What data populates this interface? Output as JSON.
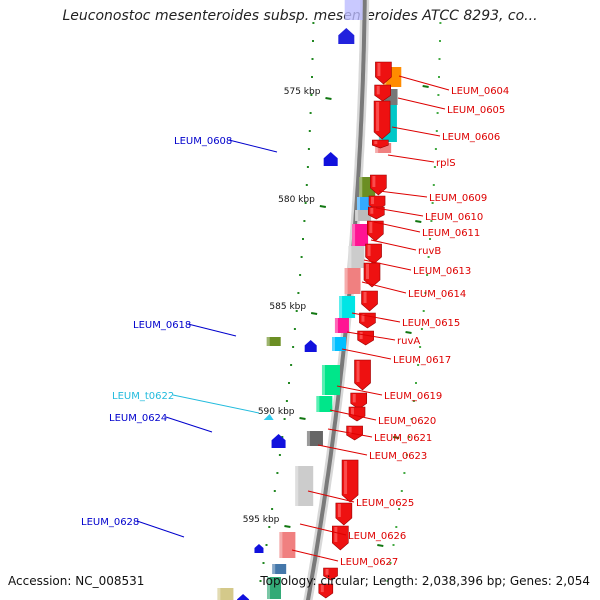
{
  "title": "Leuconostoc mesenteroides subsp. mesenteroides ATCC 8293, co...",
  "accession": "Accession: NC_008531",
  "summary": "Topology: circular; Length: 2,038,396 bp; Genes: 2,054",
  "ruler": [
    {
      "label": "575 kbp"
    },
    {
      "label": "580 kbp"
    },
    {
      "label": "585 kbp"
    },
    {
      "label": "590 kbp"
    },
    {
      "label": "595 kbp"
    }
  ],
  "features": [
    {
      "label": "LEUM_0604",
      "color": "#dd0000",
      "strand": "minus"
    },
    {
      "label": "LEUM_0605",
      "color": "#dd0000",
      "strand": "minus"
    },
    {
      "label": "LEUM_0606",
      "color": "#dd0000",
      "strand": "minus"
    },
    {
      "label": "rplS",
      "color": "#dd0000",
      "strand": "minus"
    },
    {
      "label": "LEUM_0609",
      "color": "#dd0000",
      "strand": "minus"
    },
    {
      "label": "LEUM_0610",
      "color": "#dd0000",
      "strand": "minus"
    },
    {
      "label": "LEUM_0611",
      "color": "#dd0000",
      "strand": "minus"
    },
    {
      "label": "ruvB",
      "color": "#dd0000",
      "strand": "minus"
    },
    {
      "label": "LEUM_0613",
      "color": "#dd0000",
      "strand": "minus"
    },
    {
      "label": "LEUM_0614",
      "color": "#dd0000",
      "strand": "minus"
    },
    {
      "label": "LEUM_0615",
      "color": "#dd0000",
      "strand": "minus"
    },
    {
      "label": "ruvA",
      "color": "#dd0000",
      "strand": "minus"
    },
    {
      "label": "LEUM_0617",
      "color": "#dd0000",
      "strand": "minus"
    },
    {
      "label": "LEUM_0619",
      "color": "#dd0000",
      "strand": "minus"
    },
    {
      "label": "LEUM_0620",
      "color": "#dd0000",
      "strand": "minus"
    },
    {
      "label": "LEUM_0621",
      "color": "#dd0000",
      "strand": "minus"
    },
    {
      "label": "LEUM_0623",
      "color": "#dd0000",
      "strand": "minus"
    },
    {
      "label": "LEUM_0625",
      "color": "#dd0000",
      "strand": "minus"
    },
    {
      "label": "LEUM_0626",
      "color": "#dd0000",
      "strand": "minus"
    },
    {
      "label": "LEUM_0627",
      "color": "#dd0000",
      "strand": "minus"
    },
    {
      "label": "LEUM_0608",
      "color": "#0000cc",
      "strand": "plus"
    },
    {
      "label": "LEUM_0618",
      "color": "#0000cc",
      "strand": "plus"
    },
    {
      "label": "LEUM_t0622",
      "color": "#22bbdd",
      "strand": "plus"
    },
    {
      "label": "LEUM_0624",
      "color": "#0000cc",
      "strand": "plus"
    },
    {
      "label": "LEUM_0628",
      "color": "#0000cc",
      "strand": "plus"
    }
  ]
}
